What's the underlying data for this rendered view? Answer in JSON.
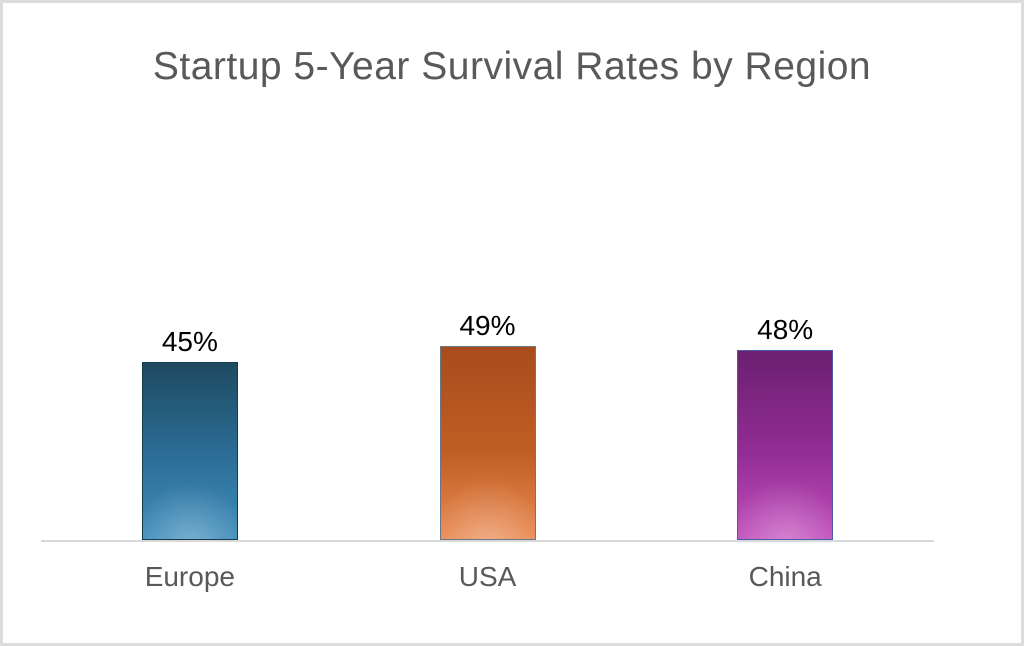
{
  "chart_data": {
    "type": "bar",
    "title": "Startup 5-Year Survival Rates by Region",
    "categories": [
      "Europe",
      "USA",
      "China"
    ],
    "values": [
      45,
      49,
      48
    ],
    "value_labels": [
      "45%",
      "49%",
      "48%"
    ],
    "xlabel": "",
    "ylabel": "",
    "ylim": [
      0,
      100
    ],
    "grid": false,
    "legend": false,
    "bar_styles": [
      {
        "name": "europe-bar",
        "gradient_top": "#1d4a60",
        "gradient_mid": "#2d6f99",
        "gradient_bottom": "#3f8dbb",
        "border": "#133c4f"
      },
      {
        "name": "usa-bar",
        "gradient_top": "#a84c1d",
        "gradient_mid": "#c05f24",
        "gradient_bottom": "#ea8a52",
        "border": "#6b7684"
      },
      {
        "name": "china-bar",
        "gradient_top": "#6b2070",
        "gradient_mid": "#932d96",
        "gradient_bottom": "#c24fbc",
        "border": "#4a5aa8"
      }
    ],
    "colors": {
      "title_text": "#595959",
      "data_label_text": "#000000",
      "category_label_text": "#595959",
      "axis_line": "#d9d9d9",
      "canvas_border": "#dcdcdc",
      "background": "#ffffff"
    }
  }
}
